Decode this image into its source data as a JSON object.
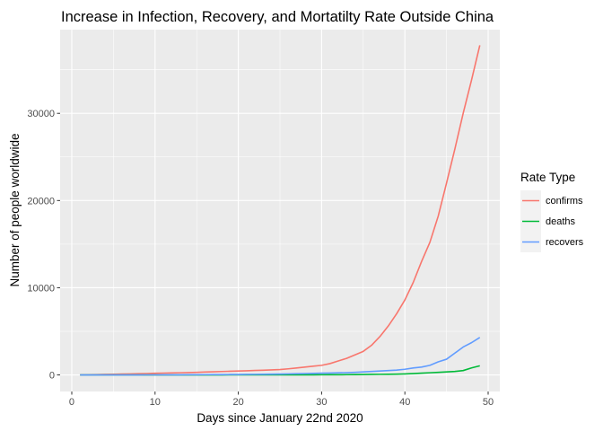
{
  "chart_data": {
    "type": "line",
    "title": "Increase in Infection, Recovery, and Mortatilty Rate Outside China",
    "xlabel": "Days since January 22nd 2020",
    "ylabel": "Number of people worldwide",
    "xlim": [
      -1.4,
      51.4
    ],
    "ylim": [
      -1900,
      39600
    ],
    "x_ticks": [
      0,
      10,
      20,
      30,
      40,
      50
    ],
    "y_ticks": [
      0,
      10000,
      20000,
      30000
    ],
    "grid": true,
    "legend": {
      "title": "Rate Type",
      "placement": "right"
    },
    "x": [
      1,
      2,
      3,
      4,
      5,
      6,
      7,
      8,
      9,
      10,
      11,
      12,
      13,
      14,
      15,
      16,
      17,
      18,
      19,
      20,
      21,
      22,
      23,
      24,
      25,
      26,
      27,
      28,
      29,
      30,
      31,
      32,
      33,
      34,
      35,
      36,
      37,
      38,
      39,
      40,
      41,
      42,
      43,
      44,
      45,
      46,
      47,
      48,
      49
    ],
    "series": [
      {
        "name": "confirms",
        "color": "#F8766D",
        "values": [
          10,
          20,
          40,
          60,
          80,
          100,
          120,
          140,
          160,
          190,
          210,
          230,
          250,
          270,
          300,
          330,
          360,
          390,
          420,
          450,
          480,
          510,
          540,
          580,
          620,
          700,
          800,
          900,
          1000,
          1100,
          1300,
          1600,
          1900,
          2300,
          2700,
          3400,
          4400,
          5600,
          7000,
          8600,
          10600,
          13000,
          15200,
          18200,
          22000,
          25900,
          30000,
          33800,
          37800
        ]
      },
      {
        "name": "deaths",
        "color": "#00BA38",
        "values": [
          0,
          0,
          0,
          0,
          0,
          0,
          1,
          1,
          1,
          1,
          1,
          2,
          2,
          2,
          2,
          3,
          3,
          3,
          4,
          4,
          5,
          6,
          7,
          8,
          9,
          10,
          12,
          14,
          16,
          18,
          20,
          25,
          30,
          40,
          50,
          60,
          70,
          80,
          90,
          110,
          150,
          200,
          250,
          300,
          350,
          400,
          500,
          800,
          1050
        ]
      },
      {
        "name": "recovers",
        "color": "#619CFF",
        "values": [
          0,
          0,
          0,
          0,
          0,
          0,
          0,
          0,
          5,
          5,
          10,
          10,
          15,
          20,
          25,
          30,
          35,
          40,
          45,
          50,
          60,
          70,
          80,
          90,
          100,
          120,
          140,
          160,
          180,
          200,
          220,
          240,
          260,
          300,
          350,
          400,
          450,
          500,
          550,
          650,
          800,
          900,
          1100,
          1500,
          1800,
          2500,
          3200,
          3700,
          4300
        ]
      }
    ]
  }
}
